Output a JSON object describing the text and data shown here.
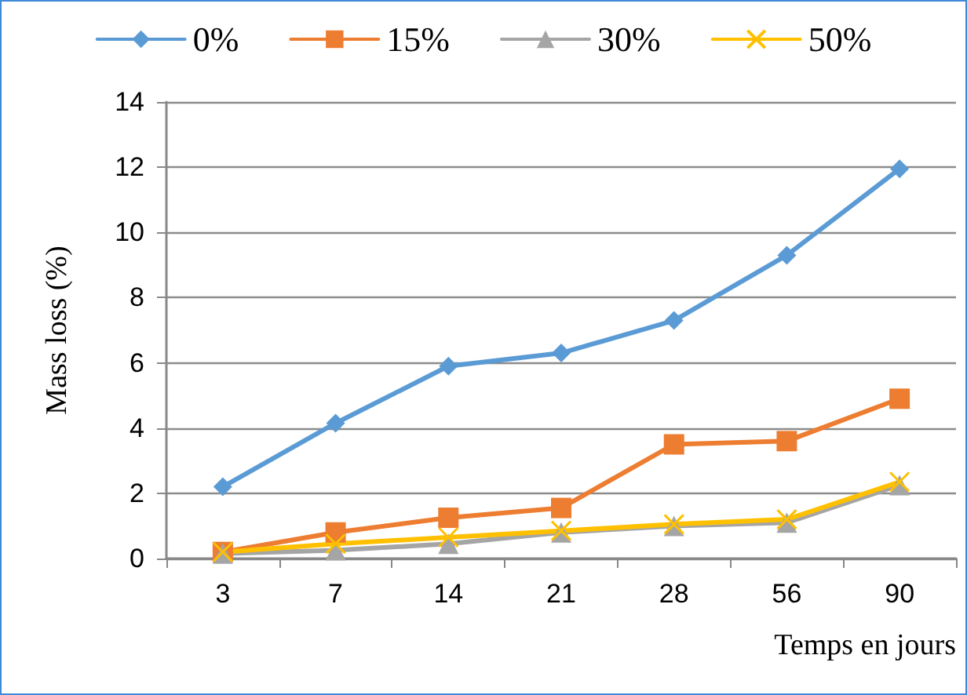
{
  "chart_data": {
    "type": "line",
    "xlabel": "Temps en jours",
    "ylabel": "Mass loss (%)",
    "categories": [
      "3",
      "7",
      "14",
      "21",
      "28",
      "56",
      "90"
    ],
    "series": [
      {
        "name": "0%",
        "color": "#5b9bd5",
        "marker": "diamond",
        "values": [
          2.2,
          4.15,
          5.9,
          6.3,
          7.3,
          9.3,
          11.95
        ]
      },
      {
        "name": "15%",
        "color": "#ed7d31",
        "marker": "square",
        "values": [
          0.2,
          0.8,
          1.25,
          1.55,
          3.5,
          3.6,
          4.9
        ]
      },
      {
        "name": "30%",
        "color": "#a5a5a5",
        "marker": "triangle",
        "values": [
          0.15,
          0.25,
          0.45,
          0.8,
          1.0,
          1.1,
          2.25
        ]
      },
      {
        "name": "50%",
        "color": "#ffc000",
        "marker": "cross",
        "values": [
          0.2,
          0.45,
          0.65,
          0.85,
          1.05,
          1.2,
          2.35
        ]
      }
    ],
    "ylim": [
      0,
      14
    ],
    "yticks": [
      0,
      2,
      4,
      6,
      8,
      10,
      12,
      14
    ],
    "grid": "y",
    "legend": "top"
  }
}
